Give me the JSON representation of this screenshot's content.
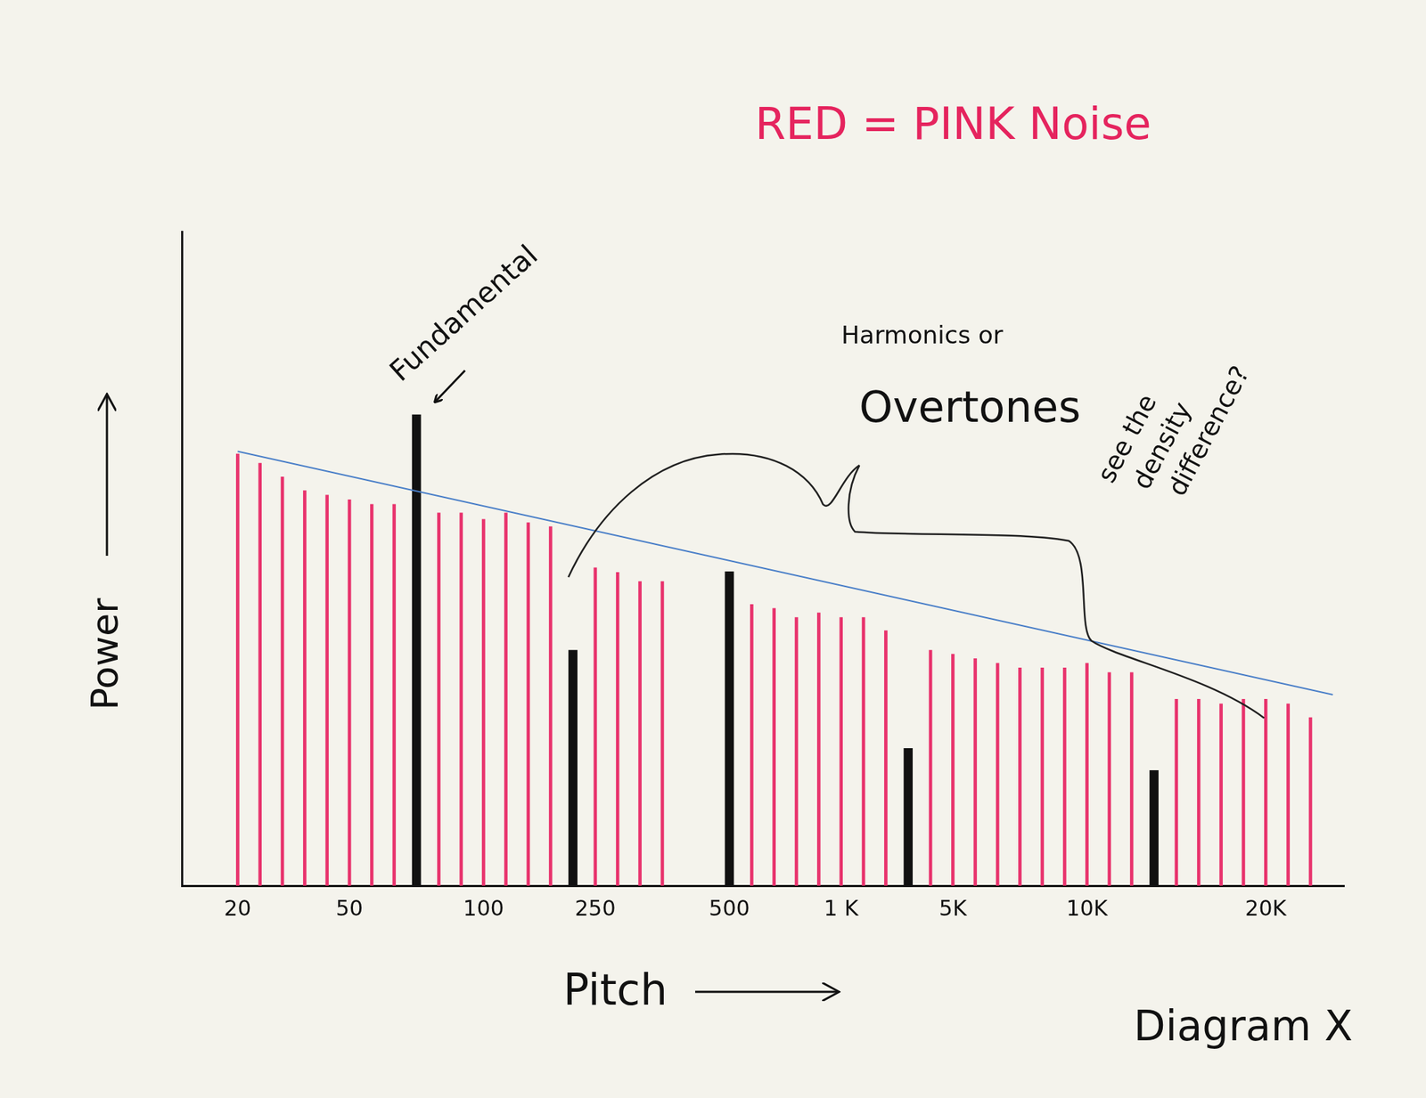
{
  "chart_data": {
    "type": "bar",
    "title": "RED = PINK Noise",
    "x_label": "Pitch",
    "y_label": "Power",
    "categories": [
      null,
      null,
      "20",
      null,
      null,
      null,
      null,
      "50",
      null,
      null,
      null,
      null,
      null,
      "100",
      null,
      null,
      null,
      null,
      "250",
      null,
      null,
      null,
      null,
      null,
      "500",
      null,
      null,
      null,
      null,
      "1 K",
      null,
      null,
      null,
      null,
      "5K",
      null,
      null,
      null,
      null,
      null,
      "10K",
      null,
      null,
      null,
      null,
      null,
      null,
      null,
      "20K",
      null,
      null,
      null
    ],
    "series": [
      {
        "color": "#e8336d",
        "values": [
          null,
          null,
          66,
          64.6,
          62.5,
          60.4,
          59.7,
          59,
          58.3,
          58.3,
          null,
          57,
          57,
          56,
          57,
          55.5,
          54.9,
          null,
          48.6,
          47.9,
          46.5,
          46.5,
          null,
          null,
          null,
          43,
          42.4,
          41,
          41.7,
          41,
          41,
          39,
          null,
          36,
          35.4,
          34.7,
          34,
          33.3,
          33.3,
          33.3,
          34,
          32.6,
          32.6,
          null,
          28.5,
          28.5,
          27.8,
          28.5,
          28.5,
          27.8,
          25.7,
          null
        ]
      },
      {
        "color": "#111111",
        "values": [
          null,
          null,
          null,
          null,
          null,
          null,
          null,
          null,
          null,
          null,
          72,
          null,
          null,
          null,
          null,
          null,
          null,
          36,
          null,
          null,
          null,
          null,
          null,
          null,
          48,
          null,
          null,
          null,
          null,
          null,
          null,
          null,
          21,
          null,
          null,
          null,
          null,
          null,
          null,
          null,
          null,
          null,
          null,
          17.6,
          null,
          null,
          null,
          null,
          null,
          null,
          null,
          null
        ]
      },
      {
        "type": "line",
        "line_style": "solid",
        "color": "#4a7fc8",
        "values": [
          null,
          null,
          66.4,
          null,
          null,
          null,
          null,
          null,
          null,
          null,
          null,
          null,
          null,
          null,
          null,
          null,
          null,
          null,
          null,
          null,
          null,
          null,
          null,
          null,
          null,
          null,
          null,
          null,
          null,
          null,
          null,
          null,
          null,
          null,
          null,
          null,
          null,
          null,
          null,
          null,
          null,
          null,
          null,
          null,
          null,
          null,
          null,
          null,
          null,
          null,
          null,
          29.2
        ]
      }
    ],
    "ylim": [
      0,
      100
    ],
    "yticks": [],
    "grid": false,
    "tick_labels": "x",
    "annotations": {
      "fundamental": "Fundamental",
      "overtones": [
        "Harmonics or",
        "Overtones"
      ],
      "density": [
        "see the",
        "density",
        "difference?"
      ],
      "caption": "Diagram X"
    }
  }
}
